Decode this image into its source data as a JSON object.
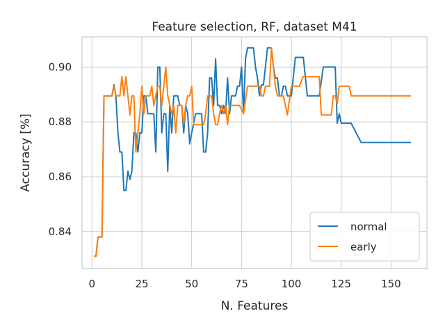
{
  "chart_data": {
    "type": "line",
    "title": "Feature selection, RF, dataset M41",
    "xlabel": "N. Features",
    "ylabel": "Accuracy [%]",
    "xlim": [
      -5,
      168
    ],
    "ylim": [
      0.8265,
      0.911
    ],
    "xticks": [
      0,
      25,
      50,
      75,
      100,
      125,
      150
    ],
    "yticks": [
      0.84,
      0.86,
      0.88,
      0.9
    ],
    "ytick_labels": [
      "0.84",
      "0.86",
      "0.88",
      "0.90"
    ],
    "grid": true,
    "legend_position": "lower-right",
    "series": [
      {
        "name": "normal",
        "color": "#1f77b4",
        "x": [
          1,
          2,
          3,
          4,
          5,
          6,
          7,
          8,
          9,
          10,
          11,
          12,
          13,
          14,
          15,
          16,
          17,
          18,
          19,
          20,
          21,
          22,
          23,
          24,
          25,
          26,
          27,
          28,
          29,
          30,
          31,
          32,
          33,
          34,
          35,
          36,
          37,
          38,
          39,
          40,
          41,
          42,
          43,
          44,
          45,
          46,
          47,
          48,
          49,
          50,
          52,
          54,
          55,
          56,
          57,
          58,
          59,
          60,
          61,
          62,
          63,
          64,
          65,
          66,
          67,
          68,
          69,
          70,
          72,
          73,
          74,
          75,
          76,
          77,
          78,
          79,
          80,
          81,
          82,
          83,
          84,
          85,
          86,
          87,
          88,
          89,
          90,
          91,
          92,
          93,
          94,
          95,
          96,
          97,
          98,
          100,
          102,
          104,
          105,
          106,
          108,
          110,
          112,
          114,
          116,
          118,
          120,
          121,
          122,
          123,
          124,
          125,
          127,
          129,
          130,
          135,
          140,
          145,
          150,
          155,
          160
        ],
        "y": [
          0.831,
          0.831,
          0.838,
          0.838,
          0.838,
          0.8895,
          0.8895,
          0.8895,
          0.8895,
          0.8895,
          0.8935,
          0.8895,
          0.876,
          0.869,
          0.869,
          0.855,
          0.855,
          0.862,
          0.859,
          0.862,
          0.876,
          0.876,
          0.869,
          0.876,
          0.876,
          0.8895,
          0.8895,
          0.883,
          0.883,
          0.883,
          0.883,
          0.869,
          0.9,
          0.9,
          0.876,
          0.883,
          0.883,
          0.862,
          0.886,
          0.876,
          0.8895,
          0.8895,
          0.8895,
          0.886,
          0.886,
          0.876,
          0.886,
          0.883,
          0.872,
          0.876,
          0.883,
          0.883,
          0.883,
          0.869,
          0.869,
          0.876,
          0.896,
          0.896,
          0.886,
          0.903,
          0.886,
          0.886,
          0.883,
          0.886,
          0.883,
          0.896,
          0.883,
          0.8895,
          0.8895,
          0.893,
          0.893,
          0.9,
          0.883,
          0.903,
          0.907,
          0.907,
          0.907,
          0.907,
          0.9,
          0.896,
          0.8895,
          0.8935,
          0.8935,
          0.9,
          0.907,
          0.907,
          0.907,
          0.9,
          0.896,
          0.896,
          0.8895,
          0.8895,
          0.893,
          0.893,
          0.8895,
          0.8895,
          0.9035,
          0.9035,
          0.9035,
          0.9035,
          0.8895,
          0.8895,
          0.8895,
          0.8895,
          0.9,
          0.9,
          0.9,
          0.9,
          0.9,
          0.8795,
          0.883,
          0.8795,
          0.8795,
          0.8795,
          0.8795,
          0.8725,
          0.8725,
          0.8725,
          0.8725,
          0.8725,
          0.8725
        ]
      },
      {
        "name": "early",
        "color": "#ff7f0e",
        "x": [
          1,
          2,
          3,
          4,
          5,
          6,
          7,
          8,
          9,
          10,
          11,
          12,
          13,
          14,
          15,
          16,
          17,
          18,
          19,
          20,
          21,
          22,
          23,
          24,
          25,
          26,
          27,
          28,
          29,
          30,
          31,
          32,
          33,
          34,
          35,
          36,
          37,
          38,
          39,
          40,
          41,
          42,
          43,
          44,
          45,
          46,
          47,
          48,
          49,
          50,
          51,
          52,
          53,
          54,
          55,
          56,
          57,
          58,
          59,
          60,
          61,
          62,
          63,
          64,
          65,
          66,
          67,
          68,
          69,
          70,
          72,
          74,
          76,
          78,
          80,
          82,
          84,
          85,
          86,
          87,
          88,
          89,
          90,
          91,
          92,
          93,
          94,
          96,
          98,
          100,
          102,
          104,
          106,
          108,
          110,
          112,
          114,
          115,
          116,
          118,
          120,
          121,
          122,
          123,
          124,
          125,
          127,
          129,
          130,
          135,
          140,
          145,
          150,
          155,
          160
        ],
        "y": [
          0.831,
          0.831,
          0.838,
          0.838,
          0.838,
          0.8895,
          0.8895,
          0.8895,
          0.8895,
          0.8895,
          0.893,
          0.8895,
          0.8895,
          0.8895,
          0.8965,
          0.8895,
          0.8965,
          0.8895,
          0.8825,
          0.8895,
          0.8895,
          0.869,
          0.876,
          0.883,
          0.893,
          0.883,
          0.8895,
          0.8895,
          0.8895,
          0.893,
          0.886,
          0.8895,
          0.893,
          0.893,
          0.886,
          0.893,
          0.9,
          0.8895,
          0.886,
          0.883,
          0.886,
          0.876,
          0.886,
          0.886,
          0.886,
          0.879,
          0.886,
          0.8895,
          0.8895,
          0.893,
          0.879,
          0.879,
          0.879,
          0.879,
          0.879,
          0.879,
          0.883,
          0.8895,
          0.8895,
          0.8895,
          0.883,
          0.879,
          0.879,
          0.883,
          0.886,
          0.883,
          0.886,
          0.879,
          0.886,
          0.886,
          0.886,
          0.886,
          0.883,
          0.893,
          0.893,
          0.893,
          0.893,
          0.8895,
          0.8895,
          0.893,
          0.893,
          0.893,
          0.907,
          0.9,
          0.893,
          0.8895,
          0.8895,
          0.8895,
          0.8825,
          0.893,
          0.893,
          0.893,
          0.8965,
          0.8965,
          0.8965,
          0.8965,
          0.8965,
          0.8825,
          0.8825,
          0.8825,
          0.8825,
          0.8895,
          0.8895,
          0.8865,
          0.893,
          0.893,
          0.893,
          0.893,
          0.8895,
          0.8895,
          0.8895,
          0.8895,
          0.8895,
          0.8895,
          0.8895
        ]
      }
    ]
  }
}
